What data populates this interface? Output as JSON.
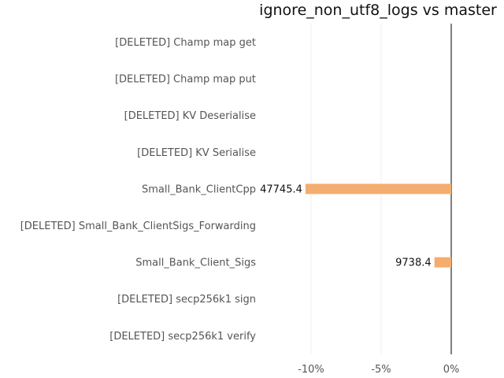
{
  "chart_data": {
    "type": "bar",
    "orientation": "horizontal",
    "title": "ignore_non_utf8_logs vs master",
    "categories": [
      "[DELETED] Champ map get",
      "[DELETED] Champ map put",
      "[DELETED] KV Deserialise",
      "[DELETED] KV Serialise",
      "Small_Bank_ClientCpp",
      "[DELETED] Small_Bank_ClientSigs_Forwarding",
      "Small_Bank_Client_Sigs",
      "[DELETED] secp256k1 sign",
      "[DELETED] secp256k1 verify"
    ],
    "values": [
      null,
      null,
      null,
      null,
      -10.4,
      null,
      -1.2,
      null,
      null
    ],
    "value_labels": [
      "",
      "",
      "",
      "",
      "47745.4",
      "",
      "9738.4",
      "",
      ""
    ],
    "x_ticks": [
      -10,
      -5,
      0
    ],
    "x_tick_labels": [
      "-10%",
      "-5%",
      "0%"
    ],
    "xlim": [
      -11,
      0
    ],
    "grid": true,
    "bar_color": "#f5ad6f",
    "zero_line_color": "#7f7f7f",
    "grid_color": "#efefef"
  }
}
